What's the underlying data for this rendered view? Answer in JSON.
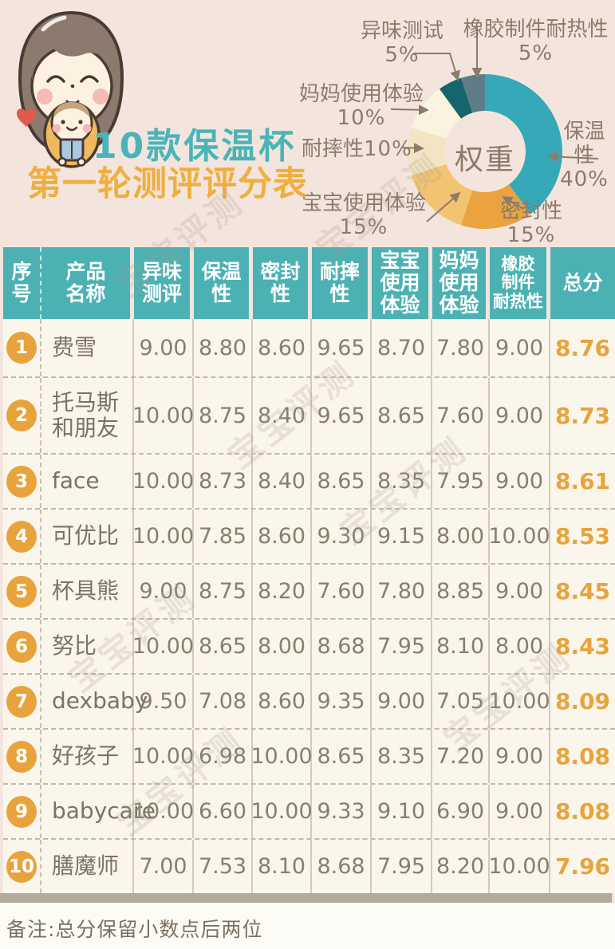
{
  "page": {
    "title_line1": "10款保温杯",
    "title_line2": "第一轮测评评分表",
    "note": "备注:总分保留小数点后两位",
    "watermark": "宝宝评测"
  },
  "colors": {
    "header_teal": "#4cb1b3",
    "accent_orange": "#e8a33c",
    "page_background": "#f3e5dd",
    "cell_background": "#faf6ec",
    "text_brown": "#8b7d6d"
  },
  "chart_data": {
    "type": "pie",
    "donut": true,
    "title": "权重",
    "center_label": "权重",
    "start_angle_deg": 0,
    "clockwise": true,
    "legend_position": "callout-labels",
    "slices": [
      {
        "label": "保温性",
        "pct": 40,
        "pct_text": "40%",
        "color": "#35a9b7"
      },
      {
        "label": "密封性",
        "pct": 15,
        "pct_text": "15%",
        "color": "#eaa33e"
      },
      {
        "label": "宝宝使用体验",
        "pct": 15,
        "pct_text": "15%",
        "color": "#f2c472"
      },
      {
        "label": "耐摔性",
        "pct": 10,
        "pct_text": "10%",
        "color": "#f3e5c3"
      },
      {
        "label": "妈妈使用体验",
        "pct": 10,
        "pct_text": "10%",
        "color": "#faf3e0"
      },
      {
        "label": "异味测试",
        "pct": 5,
        "pct_text": "5%",
        "color": "#15656d"
      },
      {
        "label": "橡胶制件耐热性",
        "pct": 5,
        "pct_text": "5%",
        "color": "#5f7d89"
      }
    ]
  },
  "table": {
    "headers": [
      "序\n号",
      "产品\n名称",
      "异味\n测评",
      "保温\n性",
      "密封\n性",
      "耐摔\n性",
      "宝宝\n使用\n体验",
      "妈妈\n使用\n体验",
      "橡胶\n制件\n耐热性",
      "总分"
    ],
    "rows": [
      {
        "num": "1",
        "name": "费雪",
        "scores": [
          "9.00",
          "8.80",
          "8.60",
          "9.65",
          "8.70",
          "7.80",
          "9.00"
        ],
        "total": "8.76"
      },
      {
        "num": "2",
        "name": "托马斯\n和朋友",
        "scores": [
          "10.00",
          "8.75",
          "8.40",
          "9.65",
          "8.65",
          "7.60",
          "9.00"
        ],
        "total": "8.73"
      },
      {
        "num": "3",
        "name": "face",
        "scores": [
          "10.00",
          "8.73",
          "8.40",
          "8.65",
          "8.35",
          "7.95",
          "9.00"
        ],
        "total": "8.61"
      },
      {
        "num": "4",
        "name": "可优比",
        "scores": [
          "10.00",
          "7.85",
          "8.60",
          "9.30",
          "9.15",
          "8.00",
          "10.00"
        ],
        "total": "8.53"
      },
      {
        "num": "5",
        "name": "杯具熊",
        "scores": [
          "9.00",
          "8.75",
          "8.20",
          "7.60",
          "7.80",
          "8.85",
          "9.00"
        ],
        "total": "8.45"
      },
      {
        "num": "6",
        "name": "努比",
        "scores": [
          "10.00",
          "8.65",
          "8.00",
          "8.68",
          "7.95",
          "8.10",
          "8.00"
        ],
        "total": "8.43"
      },
      {
        "num": "7",
        "name": "dexbaby",
        "scores": [
          "9.50",
          "7.08",
          "8.60",
          "9.35",
          "9.00",
          "7.05",
          "10.00"
        ],
        "total": "8.09"
      },
      {
        "num": "8",
        "name": "好孩子",
        "scores": [
          "10.00",
          "6.98",
          "10.00",
          "8.65",
          "8.35",
          "7.20",
          "9.00"
        ],
        "total": "8.08"
      },
      {
        "num": "9",
        "name": "babycare",
        "scores": [
          "10.00",
          "6.60",
          "10.00",
          "9.33",
          "9.10",
          "6.90",
          "9.00"
        ],
        "total": "8.08"
      },
      {
        "num": "10",
        "name": "膳魔师",
        "scores": [
          "7.00",
          "7.53",
          "8.10",
          "8.68",
          "7.95",
          "8.20",
          "10.00"
        ],
        "total": "7.96"
      }
    ]
  }
}
